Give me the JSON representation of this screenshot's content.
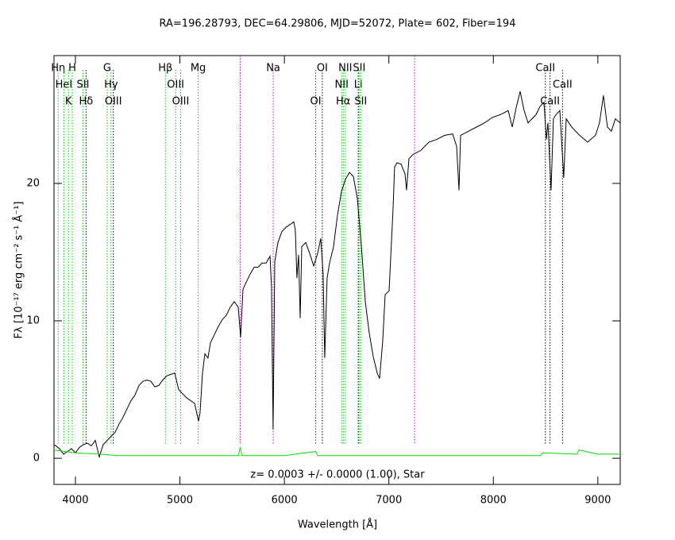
{
  "chart_data": {
    "type": "line",
    "title": "RA=196.28793, DEC=64.29806, MJD=52072, Plate=  602, Fiber=194",
    "xlabel": "Wavelength [Å]",
    "ylabel": "Fλ [10⁻¹⁷ erg cm⁻² s⁻¹ Å⁻¹]",
    "annotation": "z= 0.0003 +/- 0.0000 (1.00), Star",
    "xlim": [
      3795,
      9214
    ],
    "ylim": [
      -1.9,
      29.3
    ],
    "xticks": [
      4000,
      5000,
      6000,
      7000,
      8000,
      9000
    ],
    "yticks": [
      0,
      10,
      20
    ],
    "series": [
      {
        "name": "flux",
        "color": "#000000",
        "x": [
          3795,
          3848,
          3886,
          3924,
          3962,
          4000,
          4038,
          4076,
          4114,
          4152,
          4190,
          4228,
          4266,
          4304,
          4342,
          4380,
          4418,
          4456,
          4494,
          4532,
          4570,
          4608,
          4646,
          4684,
          4722,
          4760,
          4798,
          4836,
          4874,
          4912,
          4950,
          4988,
          5026,
          5064,
          5102,
          5140,
          5178,
          5193,
          5216,
          5239,
          5269,
          5292,
          5330,
          5368,
          5406,
          5444,
          5482,
          5520,
          5558,
          5581,
          5604,
          5634,
          5672,
          5710,
          5748,
          5786,
          5824,
          5862,
          5877,
          5892,
          5908,
          5938,
          5976,
          6014,
          6052,
          6090,
          6105,
          6120,
          6136,
          6151,
          6166,
          6204,
          6242,
          6280,
          6318,
          6348,
          6371,
          6386,
          6409,
          6432,
          6470,
          6508,
          6546,
          6584,
          6622,
          6660,
          6698,
          6736,
          6774,
          6812,
          6850,
          6888,
          6911,
          6941,
          6964,
          7002,
          7040,
          7055,
          7078,
          7116,
          7154,
          7169,
          7192,
          7230,
          7306,
          7382,
          7458,
          7534,
          7610,
          7648,
          7671,
          7686,
          7762,
          7838,
          7914,
          7990,
          8066,
          8142,
          8180,
          8218,
          8256,
          8294,
          8332,
          8370,
          8408,
          8446,
          8484,
          8507,
          8522,
          8552,
          8575,
          8598,
          8636,
          8674,
          8697,
          8750,
          8826,
          8902,
          8978,
          9016,
          9054,
          9092,
          9130,
          9168,
          9214
        ],
        "values": [
          1.0,
          0.7,
          0.3,
          0.5,
          0.7,
          0.4,
          0.8,
          1.0,
          1.1,
          0.9,
          1.3,
          0.1,
          1.0,
          1.3,
          1.6,
          1.9,
          2.5,
          3.0,
          3.6,
          4.2,
          4.6,
          5.3,
          5.6,
          5.7,
          5.6,
          5.2,
          5.3,
          5.7,
          6.0,
          6.1,
          6.2,
          5.0,
          4.7,
          4.4,
          4.2,
          4.0,
          2.7,
          3.3,
          6.2,
          7.6,
          7.3,
          8.4,
          9.0,
          9.6,
          10.1,
          10.4,
          11.0,
          11.4,
          11.0,
          8.8,
          12.3,
          12.8,
          13.4,
          13.9,
          13.9,
          14.2,
          14.2,
          14.7,
          12.5,
          2.1,
          14.3,
          15.7,
          16.5,
          16.8,
          17.0,
          17.2,
          16.6,
          13.1,
          14.8,
          10.2,
          15.4,
          15.7,
          14.9,
          14.0,
          14.9,
          16.0,
          13.4,
          7.3,
          13.1,
          14.2,
          15.4,
          17.7,
          19.4,
          20.3,
          20.8,
          20.5,
          18.9,
          15.5,
          11.4,
          9.1,
          7.4,
          6.2,
          5.8,
          8.5,
          11.9,
          12.2,
          18.2,
          21.2,
          21.5,
          21.4,
          20.7,
          19.5,
          21.8,
          22.1,
          22.4,
          23.0,
          23.2,
          23.5,
          23.6,
          22.7,
          19.5,
          23.5,
          23.8,
          24.1,
          24.4,
          24.8,
          25.0,
          25.3,
          24.1,
          25.5,
          26.7,
          25.3,
          24.4,
          24.7,
          25.0,
          25.6,
          25.9,
          23.2,
          24.4,
          19.5,
          24.7,
          25.0,
          25.3,
          20.4,
          24.7,
          24.1,
          23.5,
          23.0,
          23.5,
          24.4,
          26.4,
          24.1,
          23.8,
          24.7,
          24.4
        ]
      },
      {
        "name": "error",
        "color": "#00dd00",
        "x": [
          3795,
          4000,
          4228,
          4400,
          5000,
          5560,
          5577,
          5594,
          6000,
          6300,
          6320,
          7000,
          8000,
          8450,
          8470,
          8800,
          8820,
          9000,
          9214
        ],
        "values": [
          0.6,
          0.4,
          0.3,
          0.2,
          0.2,
          0.2,
          0.8,
          0.2,
          0.2,
          0.5,
          0.2,
          0.2,
          0.2,
          0.2,
          0.4,
          0.3,
          0.6,
          0.3,
          0.3
        ]
      }
    ],
    "lines": [
      {
        "wave": 3835,
        "label": "Hη",
        "row": 0,
        "color": "#00cc00"
      },
      {
        "wave": 3970,
        "label": "H",
        "row": 0,
        "color": "#00cc00"
      },
      {
        "wave": 3889,
        "label": "HeI",
        "row": 1,
        "color": "#00cc00"
      },
      {
        "wave": 4072,
        "label": "SII",
        "row": 1,
        "color": "#00cc00"
      },
      {
        "wave": 3934,
        "label": "K",
        "row": 2,
        "color": "#00cc00"
      },
      {
        "wave": 4102,
        "label": "Hδ",
        "row": 2,
        "color": "#000000"
      },
      {
        "wave": 4304,
        "label": "G",
        "row": 0,
        "color": "#00cc00"
      },
      {
        "wave": 4341,
        "label": "Hγ",
        "row": 1,
        "color": "#00cc00"
      },
      {
        "wave": 4363,
        "label": "OIII",
        "row": 2,
        "color": "#000000"
      },
      {
        "wave": 4861,
        "label": "Hβ",
        "row": 0,
        "color": "#00cc00"
      },
      {
        "wave": 4959,
        "label": "OIII",
        "row": 1,
        "color": "#00cc00"
      },
      {
        "wave": 5007,
        "label": "OIII",
        "row": 2,
        "color": "#00cc00"
      },
      {
        "wave": 5175,
        "label": "Mg",
        "row": 0,
        "color": "#00cc00"
      },
      {
        "wave": 5893,
        "label": "Na",
        "row": 0,
        "color": "#cc00cc"
      },
      {
        "wave": 6363,
        "label": "OI",
        "row": 0,
        "color": "#000000"
      },
      {
        "wave": 6300,
        "label": "OI",
        "row": 2,
        "color": "#6600cc"
      },
      {
        "wave": 6583,
        "label": "NII",
        "row": 0,
        "color": "#00cc00"
      },
      {
        "wave": 6716,
        "label": "SII",
        "row": 0,
        "color": "#00cc00"
      },
      {
        "wave": 6548,
        "label": "NII",
        "row": 1,
        "color": "#00cc00"
      },
      {
        "wave": 6707,
        "label": "Li",
        "row": 1,
        "color": "#000000"
      },
      {
        "wave": 6563,
        "label": "Hα",
        "row": 2,
        "color": "#00cc00"
      },
      {
        "wave": 6731,
        "label": "SII",
        "row": 2,
        "color": "#00cc00"
      },
      {
        "wave": 8498,
        "label": "CaII",
        "row": 0,
        "color": "#000000"
      },
      {
        "wave": 8662,
        "label": "CaII",
        "row": 1,
        "color": "#000000"
      },
      {
        "wave": 8542,
        "label": "CaII",
        "row": 2,
        "color": "#000000"
      }
    ],
    "sky_lines": [
      5577,
      7246
    ],
    "sky_color": "#cc00cc"
  }
}
